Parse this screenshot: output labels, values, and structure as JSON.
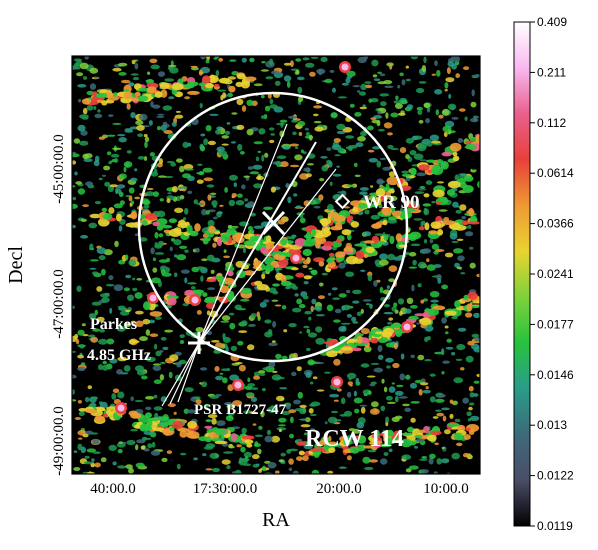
{
  "axes": {
    "xlabel": "RA",
    "ylabel": "Decl",
    "xticks": [
      "40:00.0",
      "17:30:00.0",
      "20:00.0",
      "10:00.0"
    ],
    "yticks": [
      "-45:00:00.0",
      "-47:00:00.0",
      "-49:00:00.0"
    ]
  },
  "annotations": {
    "wr": "WR 90",
    "parkes_line1": "Parkes",
    "parkes_line2": "4.85 GHz",
    "pulsar": "PSR B1727-47",
    "region": "RCW 114"
  },
  "colorbar": {
    "ticks": [
      "0.409",
      "0.211",
      "0.112",
      "0.0614",
      "0.0366",
      "0.0241",
      "0.0177",
      "0.0146",
      "0.013",
      "0.0122",
      "0.0119"
    ],
    "colors": [
      "#ffffff",
      "#f7b9f0",
      "#e9608e",
      "#e8403a",
      "#ee9a34",
      "#e8d330",
      "#7fd23a",
      "#27c23e",
      "#2a9c8a",
      "#3c6b7a",
      "#4b4d68",
      "#000000"
    ]
  },
  "colors": {
    "background": "#000000",
    "overlay": "#ffffff"
  }
}
